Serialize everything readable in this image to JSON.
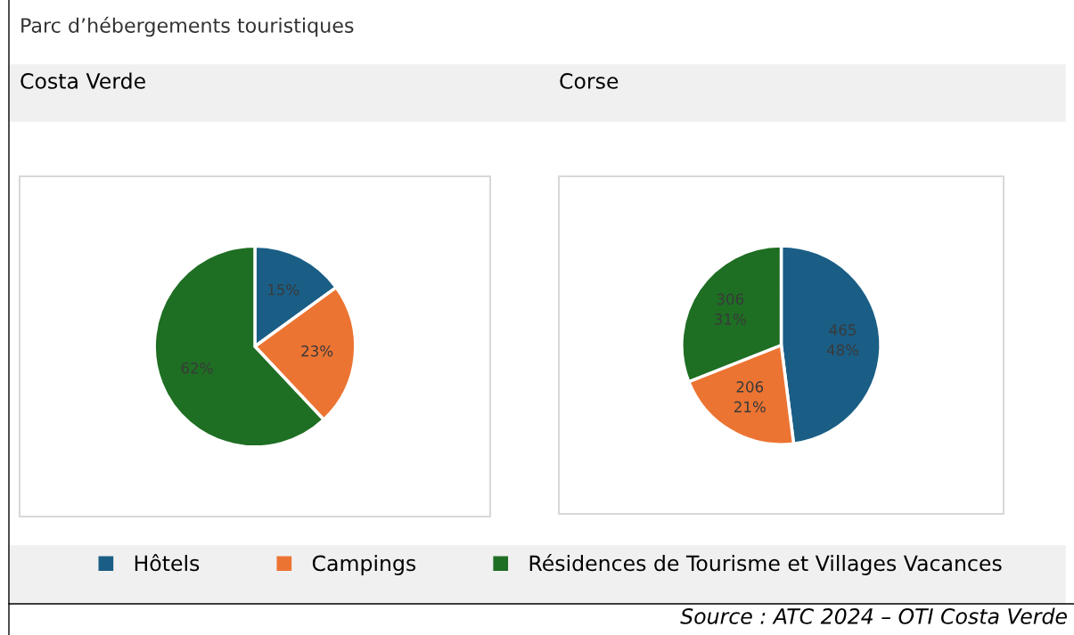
{
  "chart_data": [
    {
      "type": "pie",
      "title": "Costa Verde",
      "categories": [
        "Hôtels",
        "Campings",
        "Résidences de Tourisme et Villages Vacances"
      ],
      "values": [
        15,
        23,
        62
      ],
      "colors": [
        "#1a5e86",
        "#ec7432",
        "#1e6e23"
      ],
      "value_labels": [
        "15%",
        "23%",
        "62%"
      ],
      "legend": "bottom",
      "annotations": [
        "Parc d’hébergements touristiques"
      ]
    },
    {
      "type": "pie",
      "title": "Corse",
      "categories": [
        null,
        null,
        null
      ],
      "values": [
        48,
        21,
        31
      ],
      "colors": [
        "#1a5e86",
        "#ec7432",
        "#1e6e23"
      ],
      "value_labels": [
        "465\n48%",
        "206\n21%",
        "306\n31%"
      ],
      "annotations": [
        "Source : ATC 2024 – OTI Costa Verde"
      ]
    }
  ]
}
